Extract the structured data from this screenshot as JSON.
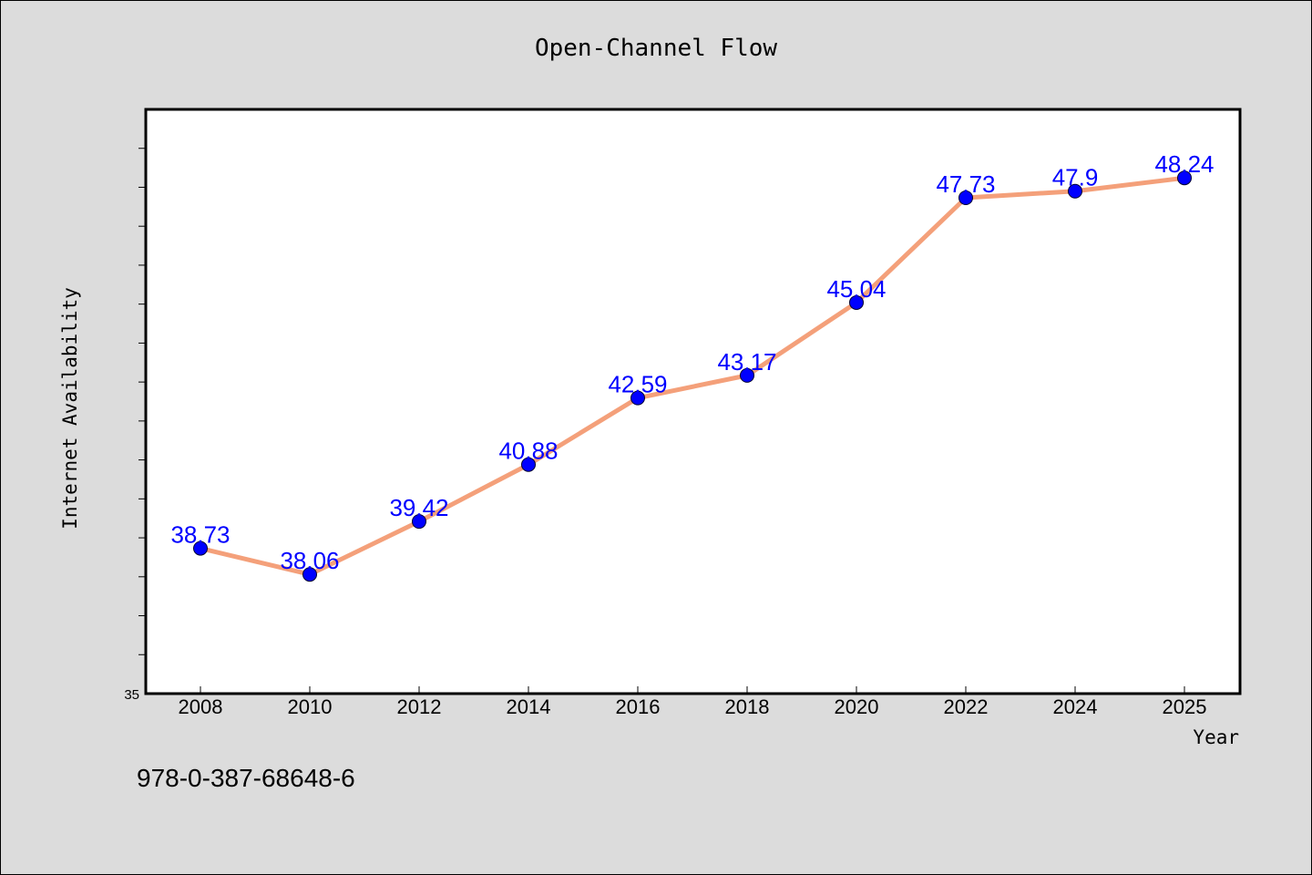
{
  "chart_data": {
    "type": "line",
    "title": "Open-Channel Flow",
    "xlabel": "Year",
    "ylabel": "Internet Availability",
    "x": [
      "2008",
      "2010",
      "2012",
      "2014",
      "2016",
      "2018",
      "2020",
      "2022",
      "2024",
      "2025"
    ],
    "series": [
      {
        "values": [
          38.73,
          38.06,
          39.42,
          40.88,
          42.59,
          43.17,
          45.04,
          47.73,
          47.9,
          48.24
        ],
        "labels": [
          "38.73",
          "38.06",
          "39.42",
          "40.88",
          "42.59",
          "43.17",
          "45.04",
          "47.73",
          "47.9",
          "48.24"
        ]
      }
    ],
    "ylim": [
      35,
      50
    ],
    "y_tick_labels": [
      "35"
    ],
    "grid": false,
    "legend": "none",
    "colors": {
      "line": "#f4a07a",
      "marker": "#0000ff",
      "data_label": "#0000ff",
      "background": "#dcdcdc",
      "plot_background": "#ffffff"
    }
  },
  "footer": {
    "isbn": "978-0-387-68648-6"
  }
}
